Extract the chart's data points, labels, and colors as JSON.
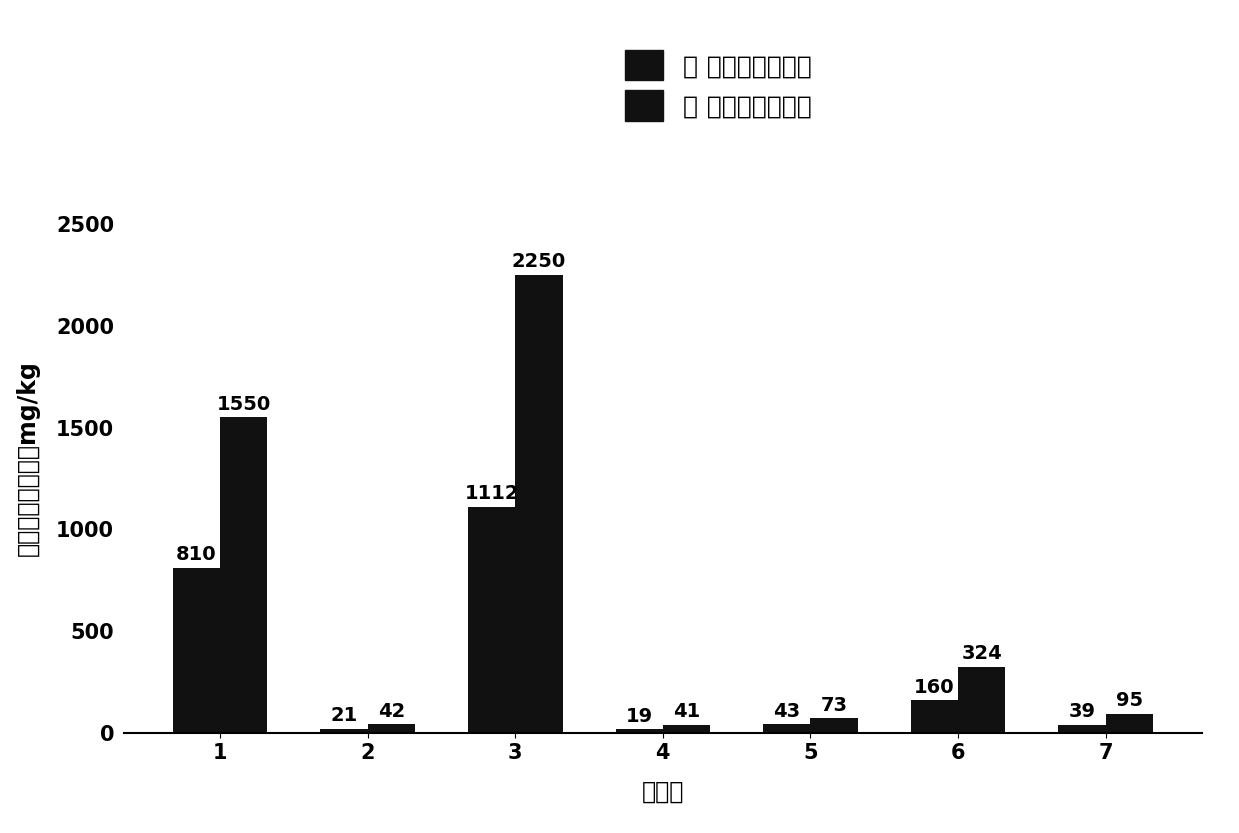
{
  "categories": [
    "1",
    "2",
    "3",
    "4",
    "5",
    "6",
    "7"
  ],
  "invention_values": [
    810,
    21,
    1112,
    19,
    43,
    160,
    39
  ],
  "control_values": [
    1550,
    42,
    2250,
    41,
    73,
    324,
    95
  ],
  "bar_color": "#111111",
  "ylabel": "土壤中石油烃浓度mg/kg",
  "xlabel": "样品号",
  "legend_invention": "： 本发明检测结果",
  "legend_control": "： 对照例检测结果",
  "ylim": [
    0,
    2700
  ],
  "yticks": [
    0,
    500,
    1000,
    1500,
    2000,
    2500
  ],
  "bar_width": 0.32,
  "annotation_fontsize": 14,
  "axis_label_fontsize": 17,
  "tick_fontsize": 15,
  "legend_fontsize": 18,
  "figsize": [
    12.39,
    8.33
  ],
  "dpi": 100
}
